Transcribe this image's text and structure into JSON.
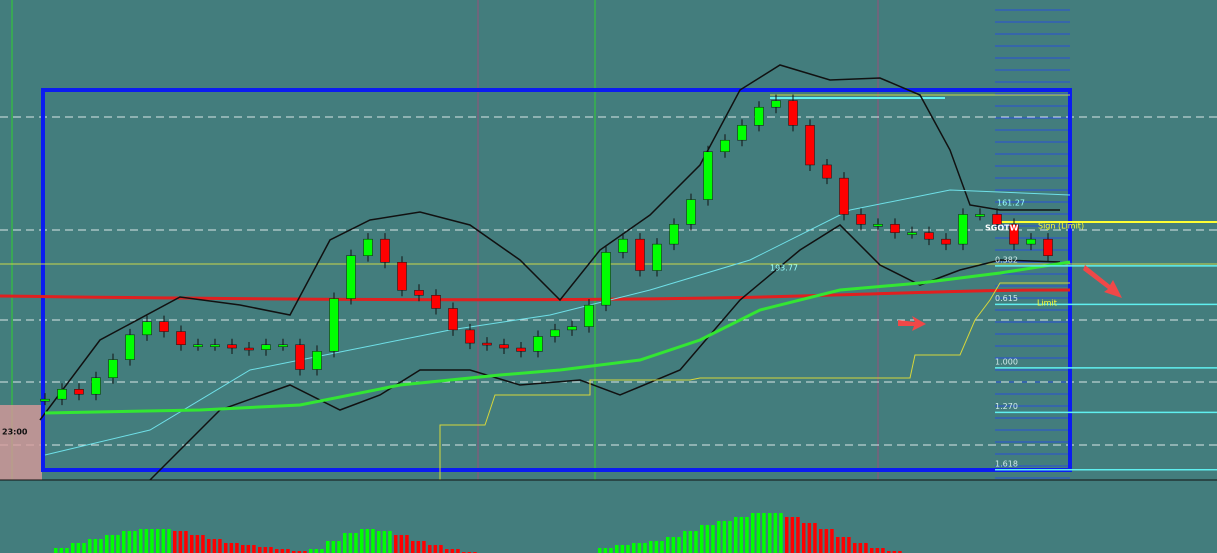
{
  "header": {
    "time_label": "23:00"
  },
  "annotations": {
    "symbol": "SGOTW",
    "sign": "Sign (Limit)",
    "limit": "Limit",
    "level_a": "161.27",
    "level_b": "193.77"
  },
  "chart_data": {
    "type": "candlestick",
    "ylim": [
      -1.23,
      1.68
    ],
    "yticks": [
      0.382,
      0.615,
      {
        "value": 1,
        "label": "1.000"
      },
      {
        "value": 1.27,
        "label": "1.270"
      },
      1.618
    ],
    "grid": true,
    "up_color": "#00ff00",
    "down_color": "#ff0000",
    "values": [
      1.19,
      1.13,
      1.16,
      1.06,
      0.95,
      0.8,
      0.72,
      0.78,
      0.86,
      0.86,
      0.86,
      0.88,
      0.89,
      0.86,
      0.86,
      1.01,
      0.9,
      0.58,
      0.32,
      0.22,
      0.36,
      0.53,
      0.56,
      0.64,
      0.77,
      0.85,
      0.86,
      0.88,
      0.9,
      0.81,
      0.77,
      0.75,
      0.62,
      0.3,
      0.22,
      0.41,
      0.25,
      0.13,
      -0.02,
      -0.31,
      -0.38,
      -0.47,
      -0.58,
      -0.62,
      -0.47,
      -0.23,
      -0.15,
      0.07,
      0.13,
      0.13,
      0.18,
      0.18,
      0.22,
      0.25,
      0.07,
      0.07,
      0.13,
      0.25,
      0.22,
      0.32
    ],
    "oscillator": [
      0,
      5,
      10,
      14,
      18,
      22,
      24,
      24,
      -22,
      -18,
      -14,
      -10,
      -8,
      -6,
      -4,
      -2,
      4,
      12,
      20,
      24,
      22,
      -18,
      -12,
      -8,
      -4,
      -1,
      0,
      0,
      0,
      0,
      0,
      0,
      0,
      5,
      8,
      10,
      12,
      16,
      22,
      28,
      32,
      36,
      40,
      40,
      -36,
      -30,
      -24,
      -16,
      -10,
      -5,
      -2,
      0,
      0,
      0,
      0,
      0,
      0,
      0,
      0,
      0
    ]
  }
}
